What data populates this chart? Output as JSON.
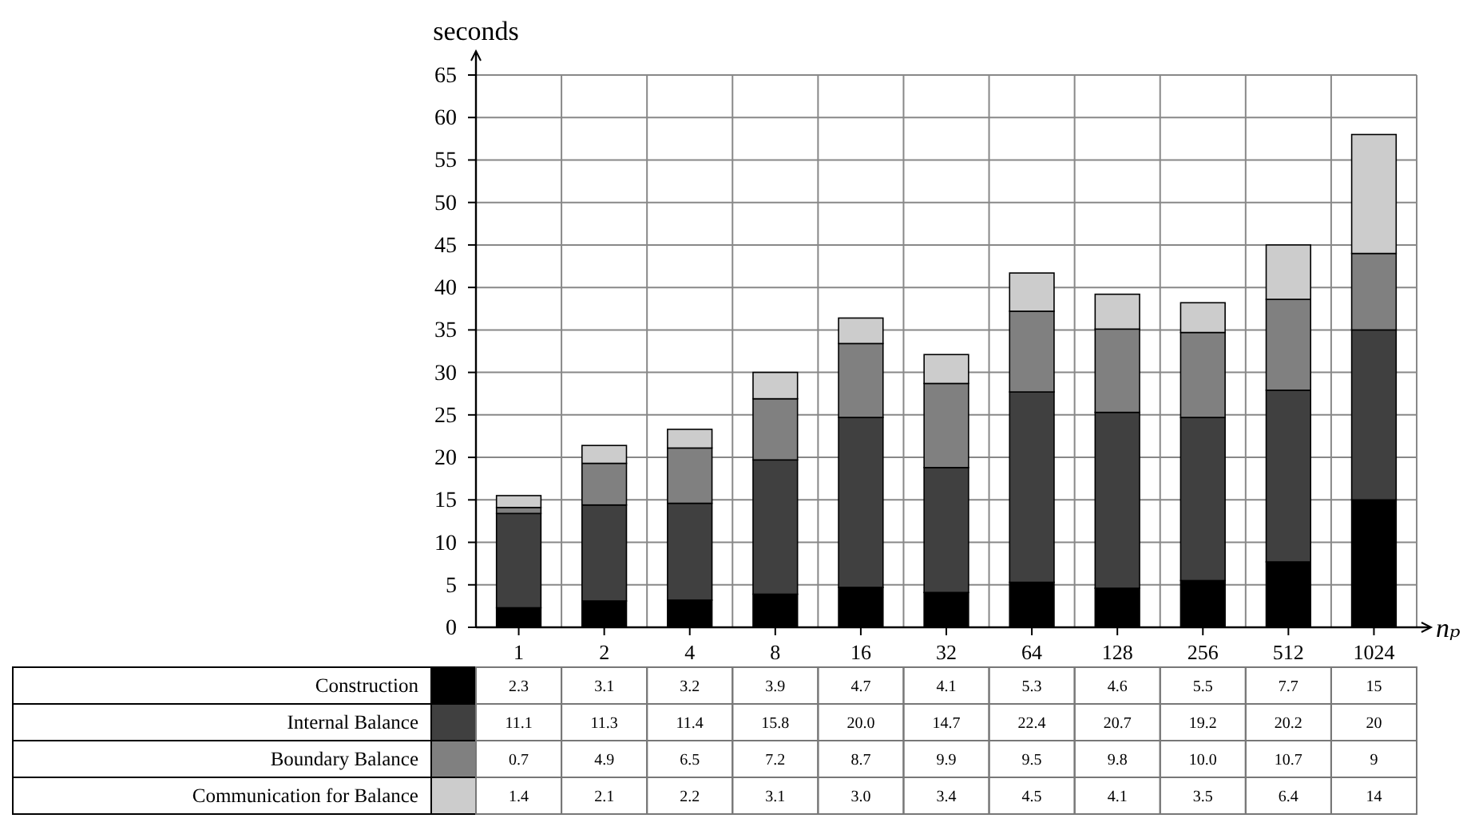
{
  "chart_data": {
    "type": "bar",
    "stacked": true,
    "ylabel": "seconds",
    "xlabel": "nₚ",
    "categories": [
      "1",
      "2",
      "4",
      "8",
      "16",
      "32",
      "64",
      "128",
      "256",
      "512",
      "1024"
    ],
    "ylim": [
      0,
      65
    ],
    "yticks": [
      0,
      5,
      10,
      15,
      20,
      25,
      30,
      35,
      40,
      45,
      50,
      55,
      60,
      65
    ],
    "grid": true,
    "legend": "bottom",
    "series": [
      {
        "name": "Construction",
        "color": "#000000",
        "values": [
          2.3,
          3.1,
          3.2,
          3.9,
          4.7,
          4.1,
          5.3,
          4.6,
          5.5,
          7.7,
          15
        ],
        "value_labels": [
          "2.3",
          "3.1",
          "3.2",
          "3.9",
          "4.7",
          "4.1",
          "5.3",
          "4.6",
          "5.5",
          "7.7",
          "15"
        ]
      },
      {
        "name": "Internal Balance",
        "color": "#404040",
        "values": [
          11.1,
          11.3,
          11.4,
          15.8,
          20.0,
          14.7,
          22.4,
          20.7,
          19.2,
          20.2,
          20
        ],
        "value_labels": [
          "11.1",
          "11.3",
          "11.4",
          "15.8",
          "20.0",
          "14.7",
          "22.4",
          "20.7",
          "19.2",
          "20.2",
          "20"
        ]
      },
      {
        "name": "Boundary Balance",
        "color": "#808080",
        "values": [
          0.7,
          4.9,
          6.5,
          7.2,
          8.7,
          9.9,
          9.5,
          9.8,
          10.0,
          10.7,
          9
        ],
        "value_labels": [
          "0.7",
          "4.9",
          "6.5",
          "7.2",
          "8.7",
          "9.9",
          "9.5",
          "9.8",
          "10.0",
          "10.7",
          "9"
        ]
      },
      {
        "name": "Communication for Balance",
        "color": "#cccccc",
        "values": [
          1.4,
          2.1,
          2.2,
          3.1,
          3.0,
          3.4,
          4.5,
          4.1,
          3.5,
          6.4,
          14
        ],
        "value_labels": [
          "1.4",
          "2.1",
          "2.2",
          "3.1",
          "3.0",
          "3.4",
          "4.5",
          "4.1",
          "3.5",
          "6.4",
          "14"
        ]
      }
    ]
  }
}
